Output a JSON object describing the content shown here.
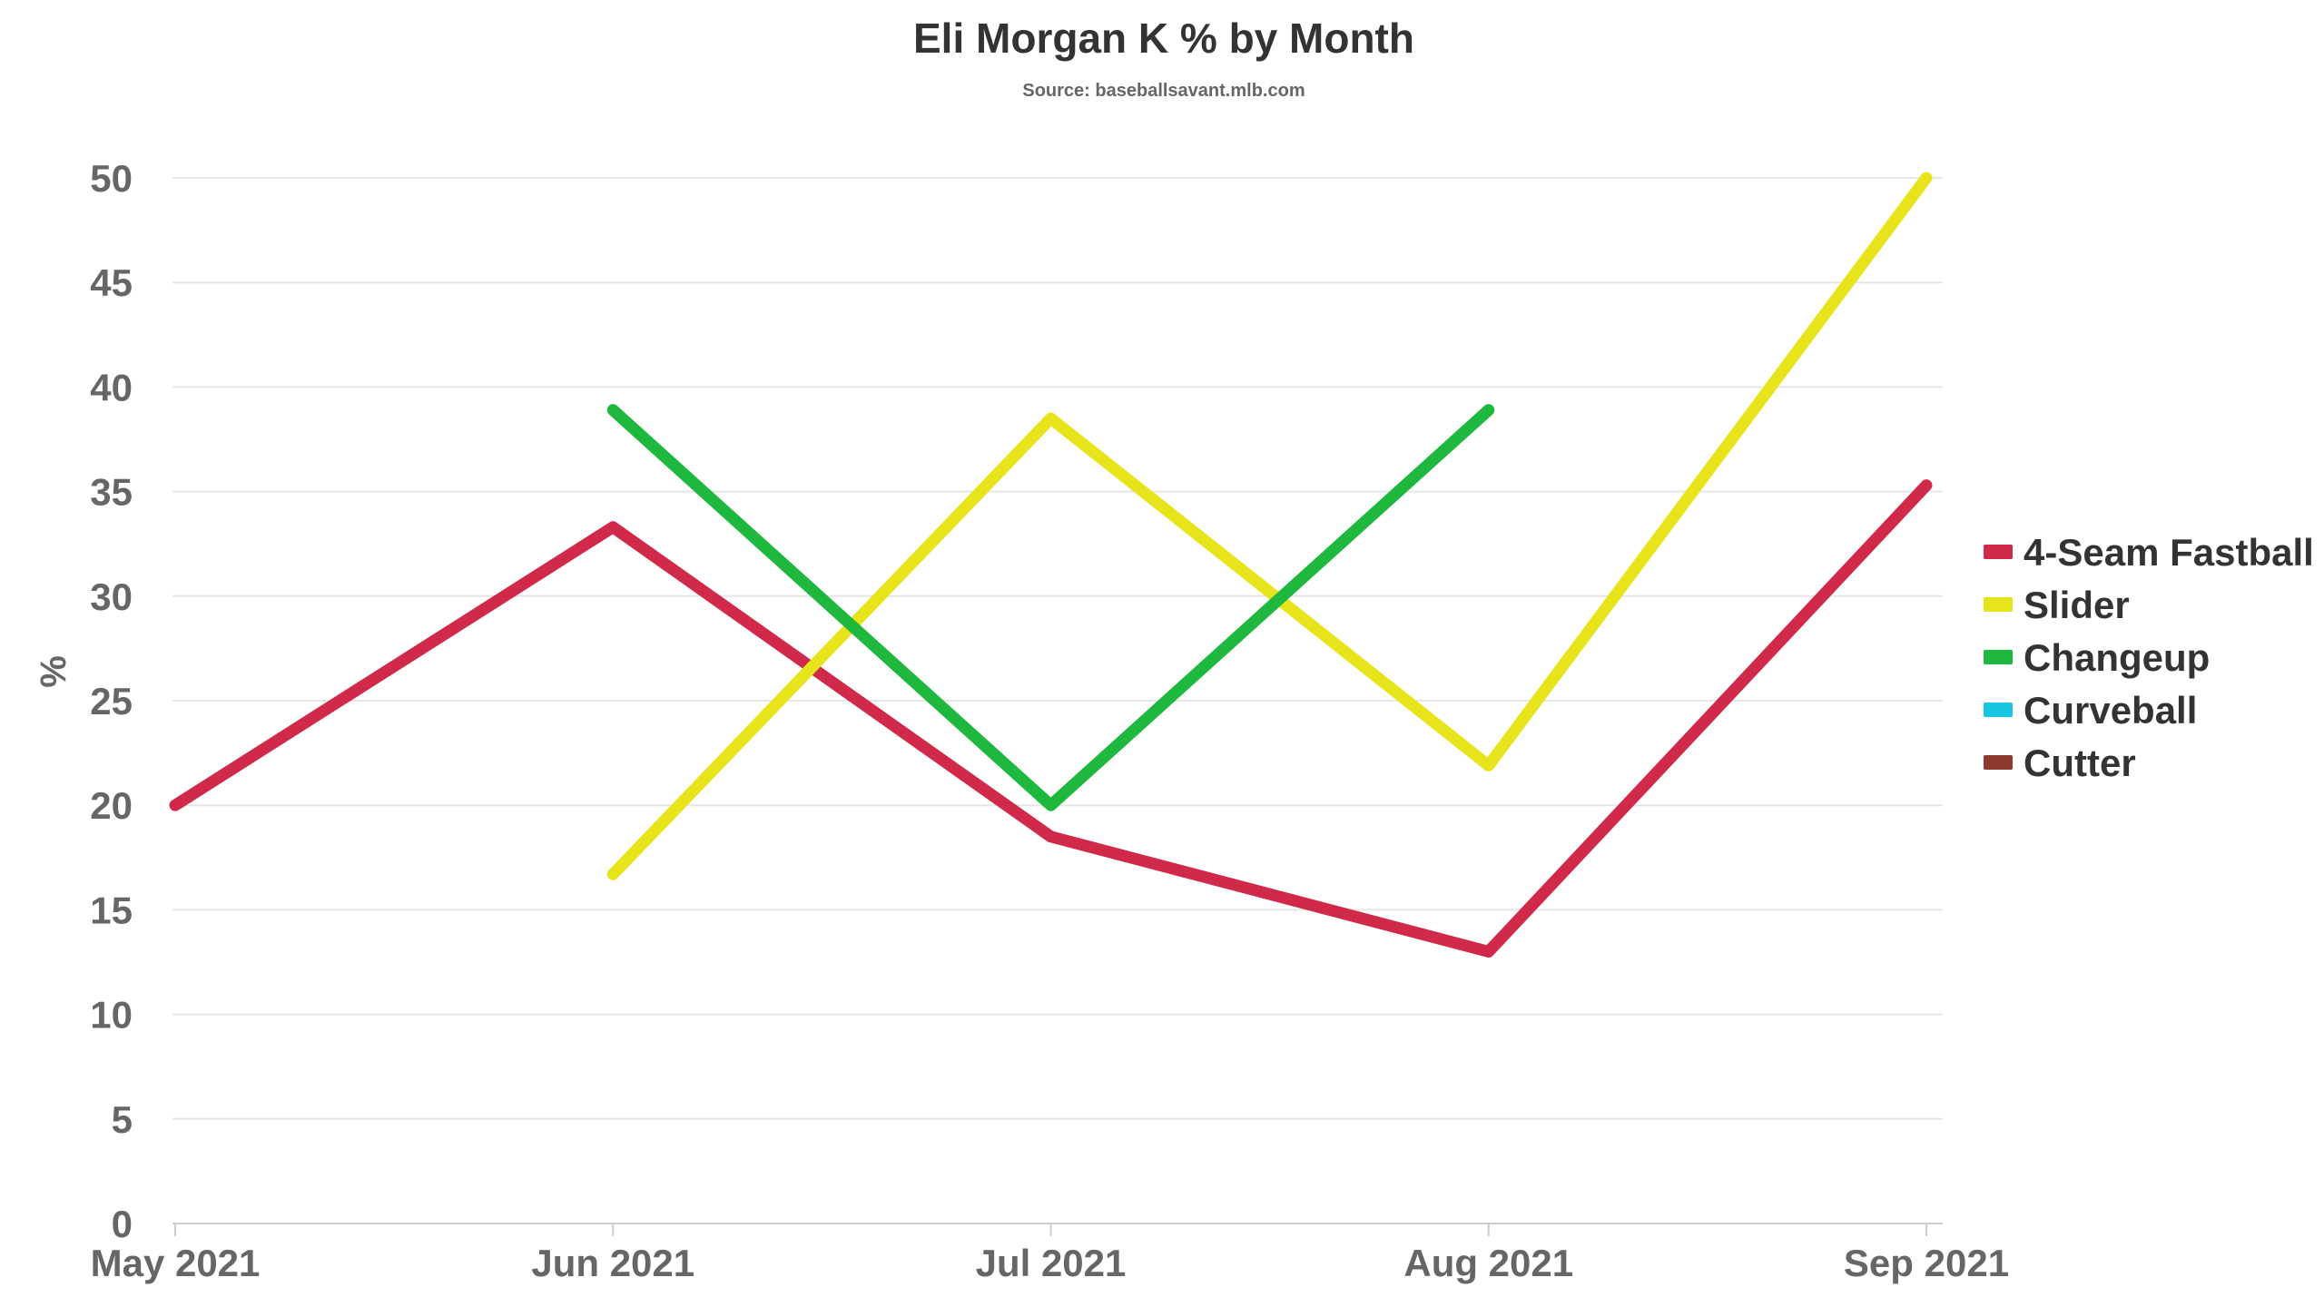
{
  "chart_data": {
    "type": "line",
    "title": "Eli Morgan K % by Month",
    "subtitle": "Source: baseballsavant.mlb.com",
    "xlabel": "",
    "ylabel": "%",
    "categories": [
      "May 2021",
      "Jun 2021",
      "Jul 2021",
      "Aug 2021",
      "Sep 2021"
    ],
    "ylim": [
      0,
      50
    ],
    "yticks": [
      0,
      5,
      10,
      15,
      20,
      25,
      30,
      35,
      40,
      45,
      50
    ],
    "grid": true,
    "legend_position": "right",
    "series": [
      {
        "name": "4-Seam Fastball",
        "color": "#d0294a",
        "values": [
          20,
          33.3,
          18.5,
          13.0,
          35.3
        ]
      },
      {
        "name": "Slider",
        "color": "#e8e41c",
        "values": [
          null,
          16.7,
          38.5,
          21.9,
          50.0
        ]
      },
      {
        "name": "Changeup",
        "color": "#1db83d",
        "values": [
          null,
          38.9,
          20.0,
          38.9,
          null
        ]
      },
      {
        "name": "Curveball",
        "color": "#17c6e0",
        "values": [
          null,
          null,
          null,
          null,
          null
        ]
      },
      {
        "name": "Cutter",
        "color": "#8c3a2e",
        "values": [
          null,
          null,
          null,
          null,
          null
        ]
      }
    ]
  }
}
